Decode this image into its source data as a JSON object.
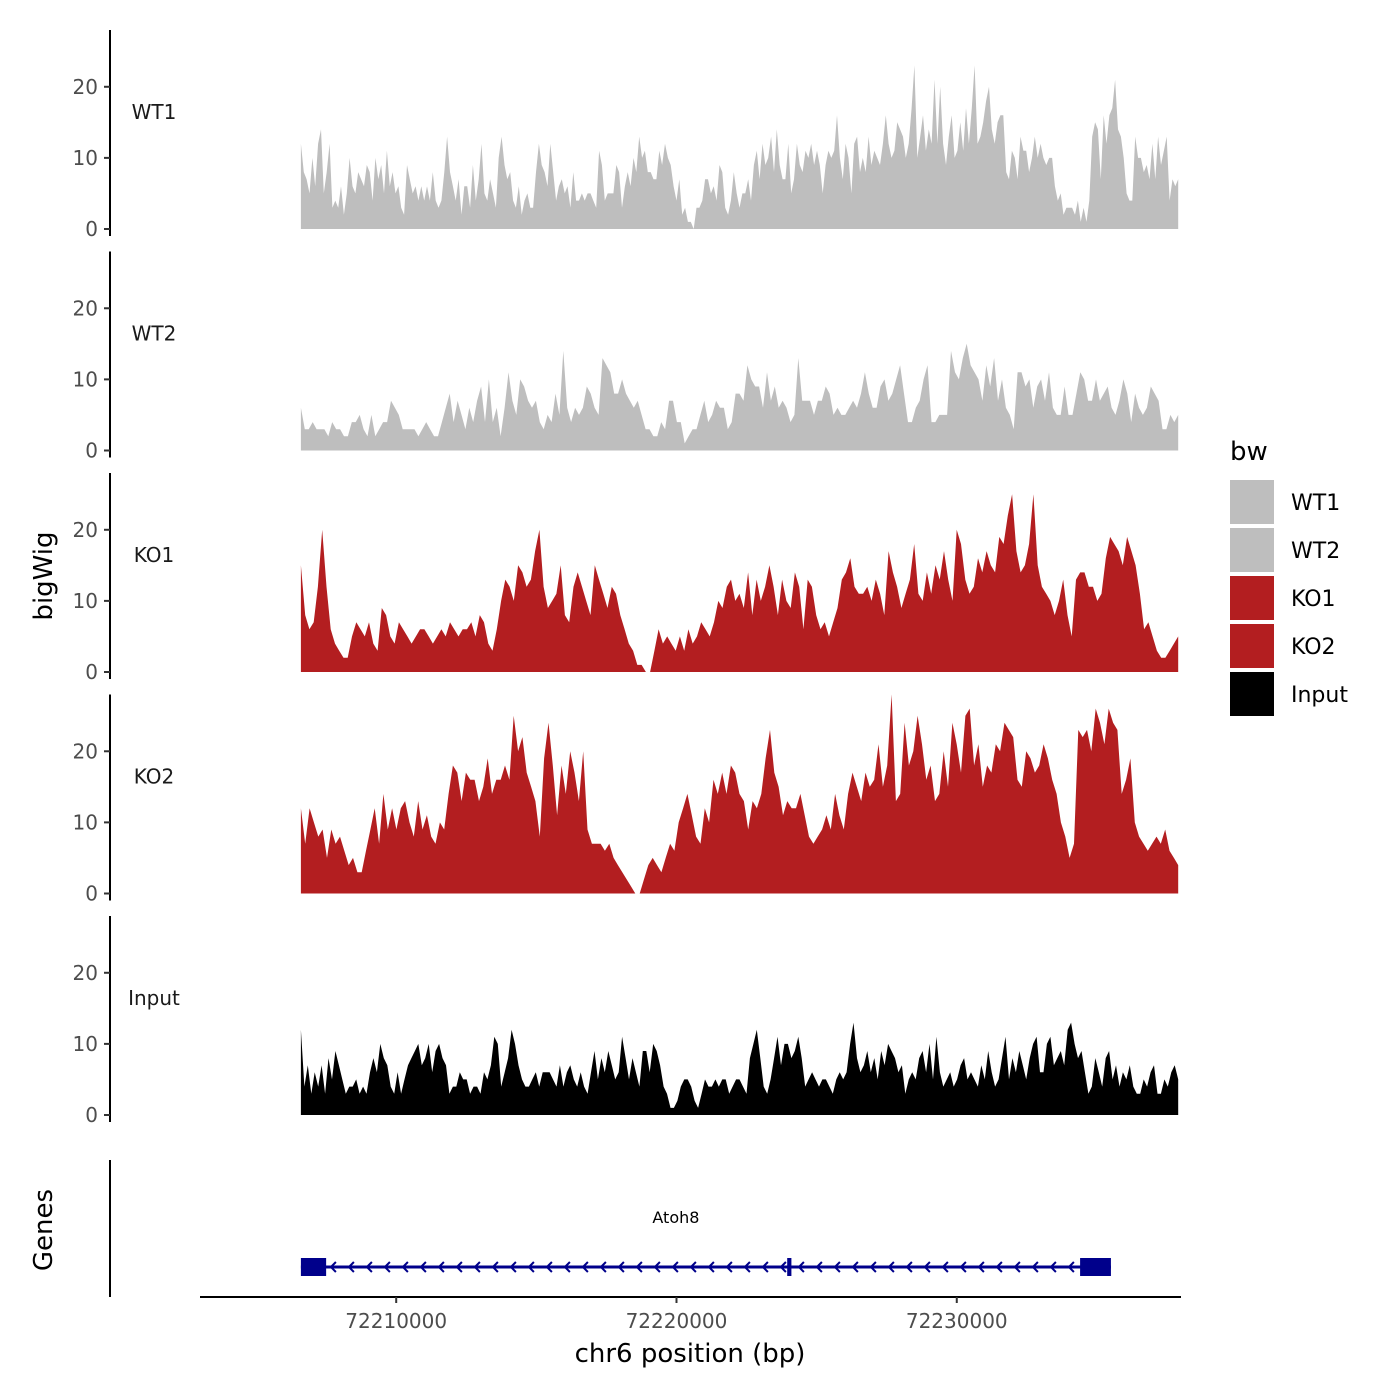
{
  "chart_data": {
    "type": "area",
    "ylabel": "bigWig",
    "xlabel": "chr6 position (bp)",
    "xlim": [
      72203000,
      72238000
    ],
    "ylim": [
      0,
      27
    ],
    "yticks": [
      0,
      10,
      20
    ],
    "xticks": [
      72210000,
      72220000,
      72230000
    ],
    "xtick_labels": [
      "72210000",
      "72220000",
      "72230000"
    ],
    "data_range": [
      72206600,
      72237900
    ],
    "genes_track_label": "Genes",
    "legend": {
      "title": "bw",
      "items": [
        {
          "label": "WT1",
          "color": "#bebebe"
        },
        {
          "label": "WT2",
          "color": "#bebebe"
        },
        {
          "label": "KO1",
          "color": "#b31e20"
        },
        {
          "label": "KO2",
          "color": "#b31e20"
        },
        {
          "label": "Input",
          "color": "#000000"
        }
      ]
    },
    "tracks": [
      {
        "name": "WT1",
        "color": "#bebebe",
        "y": [
          12,
          8,
          7,
          5,
          10,
          6,
          12,
          14,
          5,
          8,
          12,
          3,
          4,
          3,
          6,
          2,
          5,
          10,
          6,
          5,
          8,
          7,
          6,
          9,
          8,
          4,
          10,
          7,
          9,
          5,
          11,
          6,
          8,
          5,
          6,
          3,
          2,
          9,
          7,
          5,
          6,
          4,
          6,
          4,
          6,
          4,
          8,
          4,
          3,
          4,
          8,
          13,
          8,
          6,
          4,
          7,
          2,
          6,
          6,
          3,
          9,
          4,
          7,
          12,
          5,
          4,
          7,
          5,
          3,
          10,
          13,
          9,
          7,
          8,
          4,
          3,
          6,
          2,
          4,
          5,
          3,
          3,
          8,
          12,
          9,
          8,
          6,
          12,
          8,
          4,
          6,
          7,
          5,
          6,
          3,
          8,
          4,
          4,
          5,
          4,
          5,
          5,
          4,
          3,
          11,
          9,
          4,
          5,
          5,
          5,
          9,
          8,
          3,
          6,
          8,
          6,
          10,
          8,
          13,
          10,
          11,
          8,
          8,
          7,
          7,
          11,
          9,
          12,
          10,
          9,
          6,
          4,
          7,
          2,
          3,
          1,
          1,
          0,
          3,
          3,
          4,
          7,
          7,
          5,
          6,
          4,
          9,
          8,
          3,
          2,
          4,
          8,
          5,
          3,
          5,
          5,
          7,
          4,
          9,
          11,
          7,
          12,
          9,
          10,
          13,
          8,
          14,
          9,
          7,
          7,
          12,
          5,
          7,
          12,
          9,
          8,
          11,
          10,
          12,
          9,
          11,
          9,
          5,
          9,
          11,
          10,
          11,
          16,
          10,
          7,
          12,
          10,
          5,
          12,
          13,
          8,
          10,
          8,
          13,
          9,
          11,
          10,
          9,
          12,
          16,
          12,
          10,
          11,
          15,
          14,
          13,
          10,
          12,
          17,
          23,
          10,
          13,
          16,
          11,
          14,
          12,
          21,
          12,
          20,
          12,
          9,
          13,
          16,
          10,
          11,
          15,
          11,
          17,
          12,
          17,
          23,
          12,
          13,
          15,
          18,
          20,
          14,
          12,
          15,
          16,
          16,
          8,
          7,
          11,
          10,
          7,
          13,
          11,
          11,
          8,
          10,
          13,
          10,
          12,
          10,
          9,
          10,
          10,
          6,
          4,
          5,
          2,
          3,
          3,
          3,
          2,
          4,
          1,
          3,
          1,
          4,
          13,
          15,
          14,
          7,
          16,
          12,
          16,
          17,
          21,
          14,
          13,
          10,
          5,
          4,
          4,
          13,
          10,
          10,
          8,
          9,
          7,
          12,
          7,
          13,
          9,
          11,
          13,
          4,
          7,
          6,
          7
        ],
        "x": []
      },
      {
        "name": "WT2",
        "color": "#bebebe",
        "y": [
          6,
          3,
          3,
          4,
          3,
          3,
          3,
          2,
          4,
          3,
          3,
          2,
          2,
          4,
          4,
          5,
          3,
          2,
          5,
          2,
          3,
          4,
          4,
          7,
          6,
          5,
          3,
          3,
          3,
          3,
          2,
          3,
          4,
          3,
          2,
          2,
          4,
          6,
          8,
          4,
          7,
          5,
          3,
          6,
          4,
          7,
          9,
          4,
          10,
          4,
          6,
          2,
          6,
          11,
          7,
          5,
          10,
          9,
          7,
          6,
          7,
          4,
          3,
          5,
          4,
          8,
          5,
          14,
          6,
          4,
          6,
          5,
          6,
          9,
          8,
          6,
          5,
          13,
          12,
          11,
          8,
          8,
          10,
          8,
          7,
          6,
          7,
          5,
          3,
          3,
          2,
          2,
          4,
          3,
          7,
          7,
          4,
          4,
          1,
          2,
          3,
          3,
          5,
          7,
          4,
          5,
          7,
          6,
          6,
          3,
          4,
          8,
          8,
          7,
          12,
          10,
          9,
          9,
          6,
          11,
          7,
          9,
          6,
          7,
          6,
          4,
          5,
          13,
          7,
          7,
          7,
          5,
          7,
          7,
          9,
          8,
          5,
          6,
          5,
          5,
          6,
          7,
          6,
          8,
          11,
          8,
          6,
          6,
          9,
          10,
          7,
          8,
          10,
          12,
          8,
          4,
          4,
          6,
          7,
          10,
          12,
          4,
          4,
          5,
          5,
          5,
          14,
          11,
          10,
          13,
          15,
          12,
          11,
          10,
          7,
          12,
          9,
          13,
          7,
          10,
          6,
          5,
          3,
          11,
          11,
          9,
          10,
          6,
          9,
          10,
          7,
          11,
          6,
          5,
          5,
          9,
          5,
          5,
          8,
          11,
          10,
          7,
          7,
          10,
          7,
          8,
          9,
          6,
          5,
          7,
          10,
          8,
          4,
          8,
          6,
          5,
          6,
          9,
          8,
          7,
          3,
          3,
          5,
          4,
          5
        ],
        "x": []
      },
      {
        "name": "KO1",
        "color": "#b31e20",
        "y": [
          15,
          8,
          6,
          7,
          12,
          20,
          12,
          6,
          4,
          3,
          2,
          2,
          5,
          7,
          6,
          5,
          7,
          4,
          3,
          9,
          8,
          5,
          4,
          7,
          6,
          5,
          4,
          5,
          6,
          6,
          5,
          4,
          5,
          6,
          5,
          7,
          6,
          5,
          6,
          6,
          7,
          5,
          8,
          7,
          4,
          3,
          6,
          10,
          13,
          12,
          10,
          15,
          14,
          12,
          13,
          17,
          20,
          12,
          9,
          10,
          11,
          15,
          8,
          7,
          12,
          14,
          12,
          10,
          8,
          15,
          13,
          11,
          9,
          12,
          11,
          8,
          6,
          4,
          3,
          1,
          1,
          0,
          0,
          3,
          6,
          4,
          5,
          4,
          3,
          5,
          3,
          6,
          4,
          5,
          7,
          6,
          5,
          7,
          10,
          9,
          12,
          13,
          10,
          11,
          9,
          14,
          8,
          13,
          10,
          12,
          15,
          12,
          8,
          13,
          10,
          9,
          14,
          12,
          6,
          13,
          12,
          8,
          6,
          7,
          5,
          7,
          9,
          13,
          14,
          16,
          12,
          11,
          11,
          12,
          10,
          13,
          11,
          8,
          17,
          14,
          12,
          9,
          11,
          13,
          18,
          11,
          10,
          14,
          11,
          15,
          13,
          17,
          13,
          10,
          20,
          18,
          13,
          11,
          12,
          16,
          14,
          17,
          15,
          14,
          19,
          18,
          22,
          25,
          17,
          14,
          15,
          18,
          25,
          15,
          12,
          11,
          10,
          8,
          10,
          13,
          8,
          5,
          13,
          14,
          14,
          12,
          12,
          10,
          11,
          16,
          19,
          18,
          17,
          15,
          19,
          17,
          15,
          11,
          6,
          7,
          5,
          3,
          2,
          2,
          3,
          4,
          5
        ],
        "x": []
      },
      {
        "name": "KO2",
        "color": "#b31e20",
        "y": [
          12,
          7,
          12,
          10,
          8,
          9,
          5,
          9,
          7,
          8,
          6,
          4,
          5,
          3,
          3,
          6,
          9,
          12,
          7,
          14,
          9,
          12,
          9,
          12,
          13,
          10,
          8,
          13,
          9,
          11,
          8,
          7,
          10,
          9,
          14,
          18,
          17,
          13,
          17,
          16,
          16,
          13,
          15,
          19,
          14,
          16,
          16,
          18,
          16,
          25,
          20,
          22,
          17,
          15,
          13,
          8,
          19,
          24,
          18,
          11,
          18,
          14,
          20,
          17,
          13,
          20,
          9,
          7,
          7,
          7,
          6,
          7,
          5,
          4,
          3,
          2,
          1,
          0,
          0,
          2,
          4,
          5,
          4,
          3,
          5,
          7,
          6,
          10,
          12,
          14,
          11,
          8,
          7,
          12,
          10,
          16,
          14,
          17,
          14,
          18,
          17,
          14,
          13,
          9,
          13,
          12,
          14,
          19,
          23,
          17,
          15,
          11,
          13,
          12,
          12,
          14,
          11,
          8,
          7,
          8,
          9,
          11,
          9,
          14,
          11,
          9,
          14,
          17,
          15,
          13,
          17,
          15,
          16,
          21,
          15,
          18,
          28,
          13,
          14,
          24,
          18,
          20,
          25,
          21,
          16,
          18,
          13,
          14,
          20,
          15,
          24,
          21,
          17,
          25,
          26,
          18,
          21,
          15,
          18,
          17,
          21,
          20,
          24,
          23,
          22,
          16,
          15,
          20,
          19,
          17,
          18,
          21,
          19,
          16,
          14,
          10,
          8,
          5,
          7,
          23,
          22,
          23,
          20,
          26,
          24,
          21,
          26,
          24,
          23,
          14,
          16,
          19,
          10,
          8,
          7,
          6,
          7,
          8,
          7,
          9,
          6,
          5,
          4
        ],
        "x": []
      },
      {
        "name": "Input",
        "color": "#000000",
        "y": [
          12,
          4,
          7,
          3,
          6,
          4,
          7,
          3,
          8,
          5,
          9,
          7,
          5,
          3,
          4,
          4,
          5,
          3,
          4,
          3,
          6,
          8,
          6,
          10,
          8,
          7,
          4,
          3,
          6,
          3,
          5,
          7,
          8,
          9,
          10,
          7,
          8,
          10,
          6,
          9,
          10,
          8,
          7,
          3,
          4,
          4,
          6,
          5,
          5,
          3,
          4,
          4,
          3,
          6,
          5,
          7,
          11,
          10,
          4,
          6,
          8,
          12,
          10,
          7,
          5,
          4,
          4,
          5,
          6,
          4,
          6,
          6,
          6,
          5,
          4,
          7,
          4,
          6,
          7,
          5,
          4,
          6,
          4,
          3,
          6,
          9,
          5,
          8,
          6,
          9,
          7,
          5,
          6,
          11,
          8,
          5,
          8,
          6,
          4,
          9,
          9,
          6,
          10,
          9,
          7,
          4,
          3,
          1,
          1,
          2,
          4,
          5,
          5,
          4,
          2,
          1,
          3,
          5,
          4,
          4,
          5,
          4,
          5,
          5,
          3,
          4,
          5,
          5,
          4,
          3,
          8,
          10,
          12,
          8,
          4,
          3,
          5,
          8,
          11,
          7,
          10,
          10,
          8,
          9,
          11,
          8,
          4,
          5,
          6,
          5,
          4,
          5,
          5,
          4,
          3,
          5,
          6,
          5,
          6,
          10,
          13,
          8,
          6,
          7,
          9,
          6,
          8,
          5,
          9,
          7,
          10,
          9,
          8,
          6,
          7,
          3,
          5,
          6,
          5,
          8,
          9,
          6,
          10,
          5,
          11,
          6,
          4,
          5,
          6,
          4,
          5,
          7,
          8,
          5,
          6,
          5,
          4,
          7,
          5,
          9,
          6,
          4,
          5,
          8,
          11,
          5,
          8,
          6,
          9,
          7,
          5,
          8,
          10,
          11,
          6,
          6,
          10,
          11,
          7,
          8,
          9,
          7,
          12,
          13,
          10,
          8,
          9,
          6,
          3,
          4,
          8,
          6,
          4,
          8,
          9,
          5,
          7,
          4,
          6,
          5,
          7,
          4,
          3,
          3,
          5,
          4,
          6,
          7,
          3,
          3,
          5,
          4,
          6,
          7,
          5
        ],
        "x": []
      }
    ],
    "genes": [
      {
        "name": "Atoh8",
        "strand": "-",
        "start": 72206600,
        "end": 72235500,
        "exons": [
          [
            72206600,
            72207500
          ],
          [
            72223950,
            72224100
          ],
          [
            72234400,
            72235500
          ]
        ],
        "color": "#00008b"
      }
    ]
  }
}
